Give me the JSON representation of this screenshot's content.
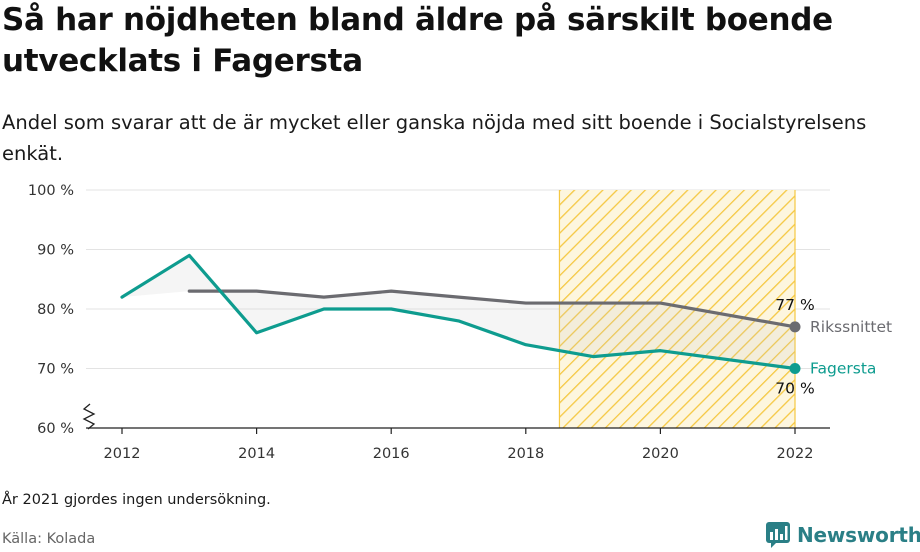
{
  "header": {
    "title": "Så har nöjdheten bland äldre på särskilt boende utvecklats i Fagersta",
    "subtitle": "Andel som svarar att de är mycket eller ganska nöjda med sitt boende i Socialstyrelsens enkät."
  },
  "footer": {
    "note": "År 2021 gjordes ingen undersökning.",
    "source": "Källa: Kolada",
    "brand": "Newsworthy"
  },
  "colors": {
    "fagersta": "#0e9c8f",
    "riksnittet": "#6b6b70",
    "highlight": "#f5c842",
    "brand": "#2a7f86"
  },
  "chart_data": {
    "type": "line",
    "title": "Så har nöjdheten bland äldre på särskilt boende utvecklats i Fagersta",
    "subtitle": "Andel som svarar att de är mycket eller ganska nöjda med sitt boende i Socialstyrelsens enkät.",
    "xlabel": "",
    "ylabel": "",
    "xlim": [
      2012,
      2022
    ],
    "ylim": [
      60,
      100
    ],
    "x_ticks": [
      2012,
      2014,
      2016,
      2018,
      2020,
      2022
    ],
    "y_ticks": [
      {
        "value": 60,
        "label": "60 %"
      },
      {
        "value": 70,
        "label": "70 %"
      },
      {
        "value": 80,
        "label": "80 %"
      },
      {
        "value": 90,
        "label": "90 %"
      },
      {
        "value": 100,
        "label": "100 %"
      }
    ],
    "grid": true,
    "highlight_range": [
      2018.5,
      2022
    ],
    "series": [
      {
        "name": "Rikssnittet",
        "color": "#6b6b70",
        "x": [
          2013,
          2014,
          2015,
          2016,
          2017,
          2018,
          2019,
          2020,
          2022
        ],
        "values": [
          83,
          83,
          82,
          83,
          82,
          81,
          81,
          81,
          77
        ],
        "end_value_label": "77 %"
      },
      {
        "name": "Fagersta",
        "color": "#0e9c8f",
        "x": [
          2012,
          2013,
          2014,
          2015,
          2016,
          2017,
          2018,
          2019,
          2020,
          2022
        ],
        "values": [
          82,
          89,
          76,
          80,
          80,
          78,
          74,
          72,
          73,
          70
        ],
        "end_value_label": "70 %"
      }
    ]
  }
}
